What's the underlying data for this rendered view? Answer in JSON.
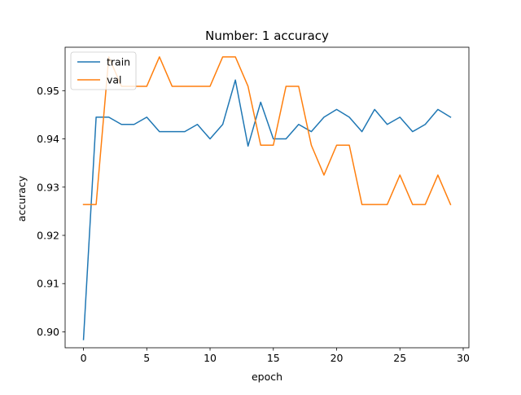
{
  "chart_data": {
    "type": "line",
    "title": "Number: 1 accuracy",
    "xlabel": "epoch",
    "ylabel": "accuracy",
    "xlim": [
      -1.45,
      30.45
    ],
    "ylim": [
      0.8967,
      0.959
    ],
    "x_ticks": [
      0,
      5,
      10,
      15,
      20,
      25,
      30
    ],
    "y_ticks": [
      0.9,
      0.91,
      0.92,
      0.93,
      0.94,
      0.95
    ],
    "x_tick_labels": [
      "0",
      "5",
      "10",
      "15",
      "20",
      "25",
      "30"
    ],
    "y_tick_labels": [
      "0.90",
      "0.91",
      "0.92",
      "0.93",
      "0.94",
      "0.95"
    ],
    "grid": false,
    "legend_position": "upper-left",
    "x": [
      0,
      1,
      2,
      3,
      4,
      5,
      6,
      7,
      8,
      9,
      10,
      11,
      12,
      13,
      14,
      15,
      16,
      17,
      18,
      19,
      20,
      21,
      22,
      23,
      24,
      25,
      26,
      27,
      28,
      29
    ],
    "series": [
      {
        "name": "train",
        "color": "#1f77b4",
        "values": [
          0.8984,
          0.9445,
          0.9445,
          0.943,
          0.943,
          0.9445,
          0.9415,
          0.9415,
          0.9415,
          0.943,
          0.94,
          0.943,
          0.9522,
          0.9385,
          0.9476,
          0.94,
          0.94,
          0.943,
          0.9415,
          0.9445,
          0.9461,
          0.9445,
          0.9415,
          0.9461,
          0.943,
          0.9445,
          0.9415,
          0.943,
          0.9461,
          0.9445
        ]
      },
      {
        "name": "val",
        "color": "#ff7f0e",
        "values": [
          0.9264,
          0.9264,
          0.957,
          0.9509,
          0.9509,
          0.9509,
          0.957,
          0.9509,
          0.9509,
          0.9509,
          0.9509,
          0.957,
          0.957,
          0.9509,
          0.9387,
          0.9387,
          0.9509,
          0.9509,
          0.9387,
          0.9325,
          0.9387,
          0.9387,
          0.9264,
          0.9264,
          0.9264,
          0.9325,
          0.9264,
          0.9264,
          0.9325,
          0.9264
        ]
      }
    ]
  }
}
